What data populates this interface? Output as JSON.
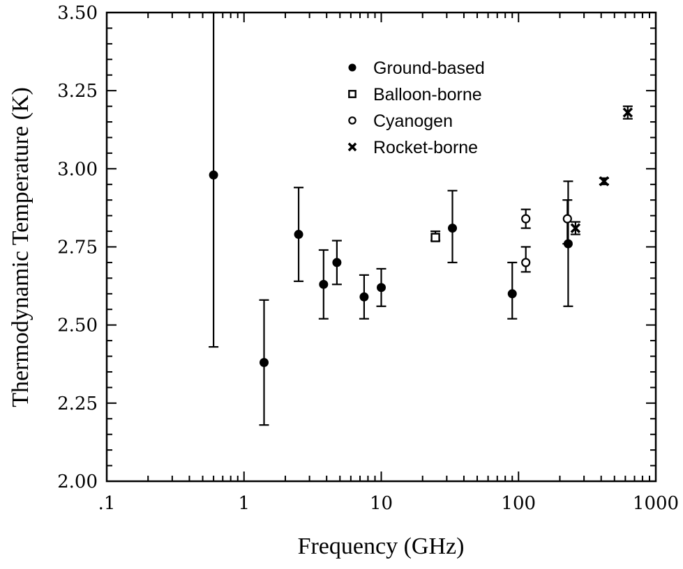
{
  "chart_data": {
    "type": "scatter",
    "xlabel": "Frequency (GHz)",
    "ylabel": "Thermodynamic Temperature (K)",
    "x_scale": "log",
    "xlim": [
      0.1,
      1000
    ],
    "ylim": [
      2.0,
      3.5
    ],
    "x_tick_labels": [
      ".1",
      "1",
      "10",
      "100",
      "1000"
    ],
    "y_tick_labels": [
      "2.00",
      "2.25",
      "2.50",
      "2.75",
      "3.00",
      "3.25",
      "3.50"
    ],
    "grid": false,
    "legend_position": "top-center",
    "series": [
      {
        "name": "Ground-based",
        "marker": "filled-circle",
        "points": [
          {
            "x": 0.6,
            "y": 2.98,
            "ylow": 2.43,
            "yhigh": 3.5
          },
          {
            "x": 1.4,
            "y": 2.38,
            "ylow": 2.18,
            "yhigh": 2.58
          },
          {
            "x": 2.5,
            "y": 2.79,
            "ylow": 2.64,
            "yhigh": 2.94
          },
          {
            "x": 3.8,
            "y": 2.63,
            "ylow": 2.52,
            "yhigh": 2.74
          },
          {
            "x": 4.75,
            "y": 2.7,
            "ylow": 2.63,
            "yhigh": 2.77
          },
          {
            "x": 7.5,
            "y": 2.59,
            "ylow": 2.52,
            "yhigh": 2.66
          },
          {
            "x": 10,
            "y": 2.62,
            "ylow": 2.56,
            "yhigh": 2.68
          },
          {
            "x": 33,
            "y": 2.81,
            "ylow": 2.7,
            "yhigh": 2.93
          },
          {
            "x": 90,
            "y": 2.6,
            "ylow": 2.52,
            "yhigh": 2.7
          },
          {
            "x": 230,
            "y": 2.76,
            "ylow": 2.56,
            "yhigh": 2.96
          }
        ]
      },
      {
        "name": "Balloon-borne",
        "marker": "open-square",
        "points": [
          {
            "x": 24.8,
            "y": 2.78,
            "ylow": 2.77,
            "yhigh": 2.8
          }
        ]
      },
      {
        "name": "Cyanogen",
        "marker": "open-circle",
        "points": [
          {
            "x": 113,
            "y": 2.7,
            "ylow": 2.67,
            "yhigh": 2.75
          },
          {
            "x": 113,
            "y": 2.84,
            "ylow": 2.81,
            "yhigh": 2.87
          },
          {
            "x": 227,
            "y": 2.84,
            "ylow": 2.76,
            "yhigh": 2.9
          }
        ]
      },
      {
        "name": "Rocket-borne",
        "marker": "cross",
        "points": [
          {
            "x": 260,
            "y": 2.81,
            "ylow": 2.79,
            "yhigh": 2.83
          },
          {
            "x": 420,
            "y": 2.96,
            "ylow": 2.95,
            "yhigh": 2.97
          },
          {
            "x": 625,
            "y": 3.18,
            "ylow": 3.16,
            "yhigh": 3.2
          }
        ]
      }
    ]
  }
}
